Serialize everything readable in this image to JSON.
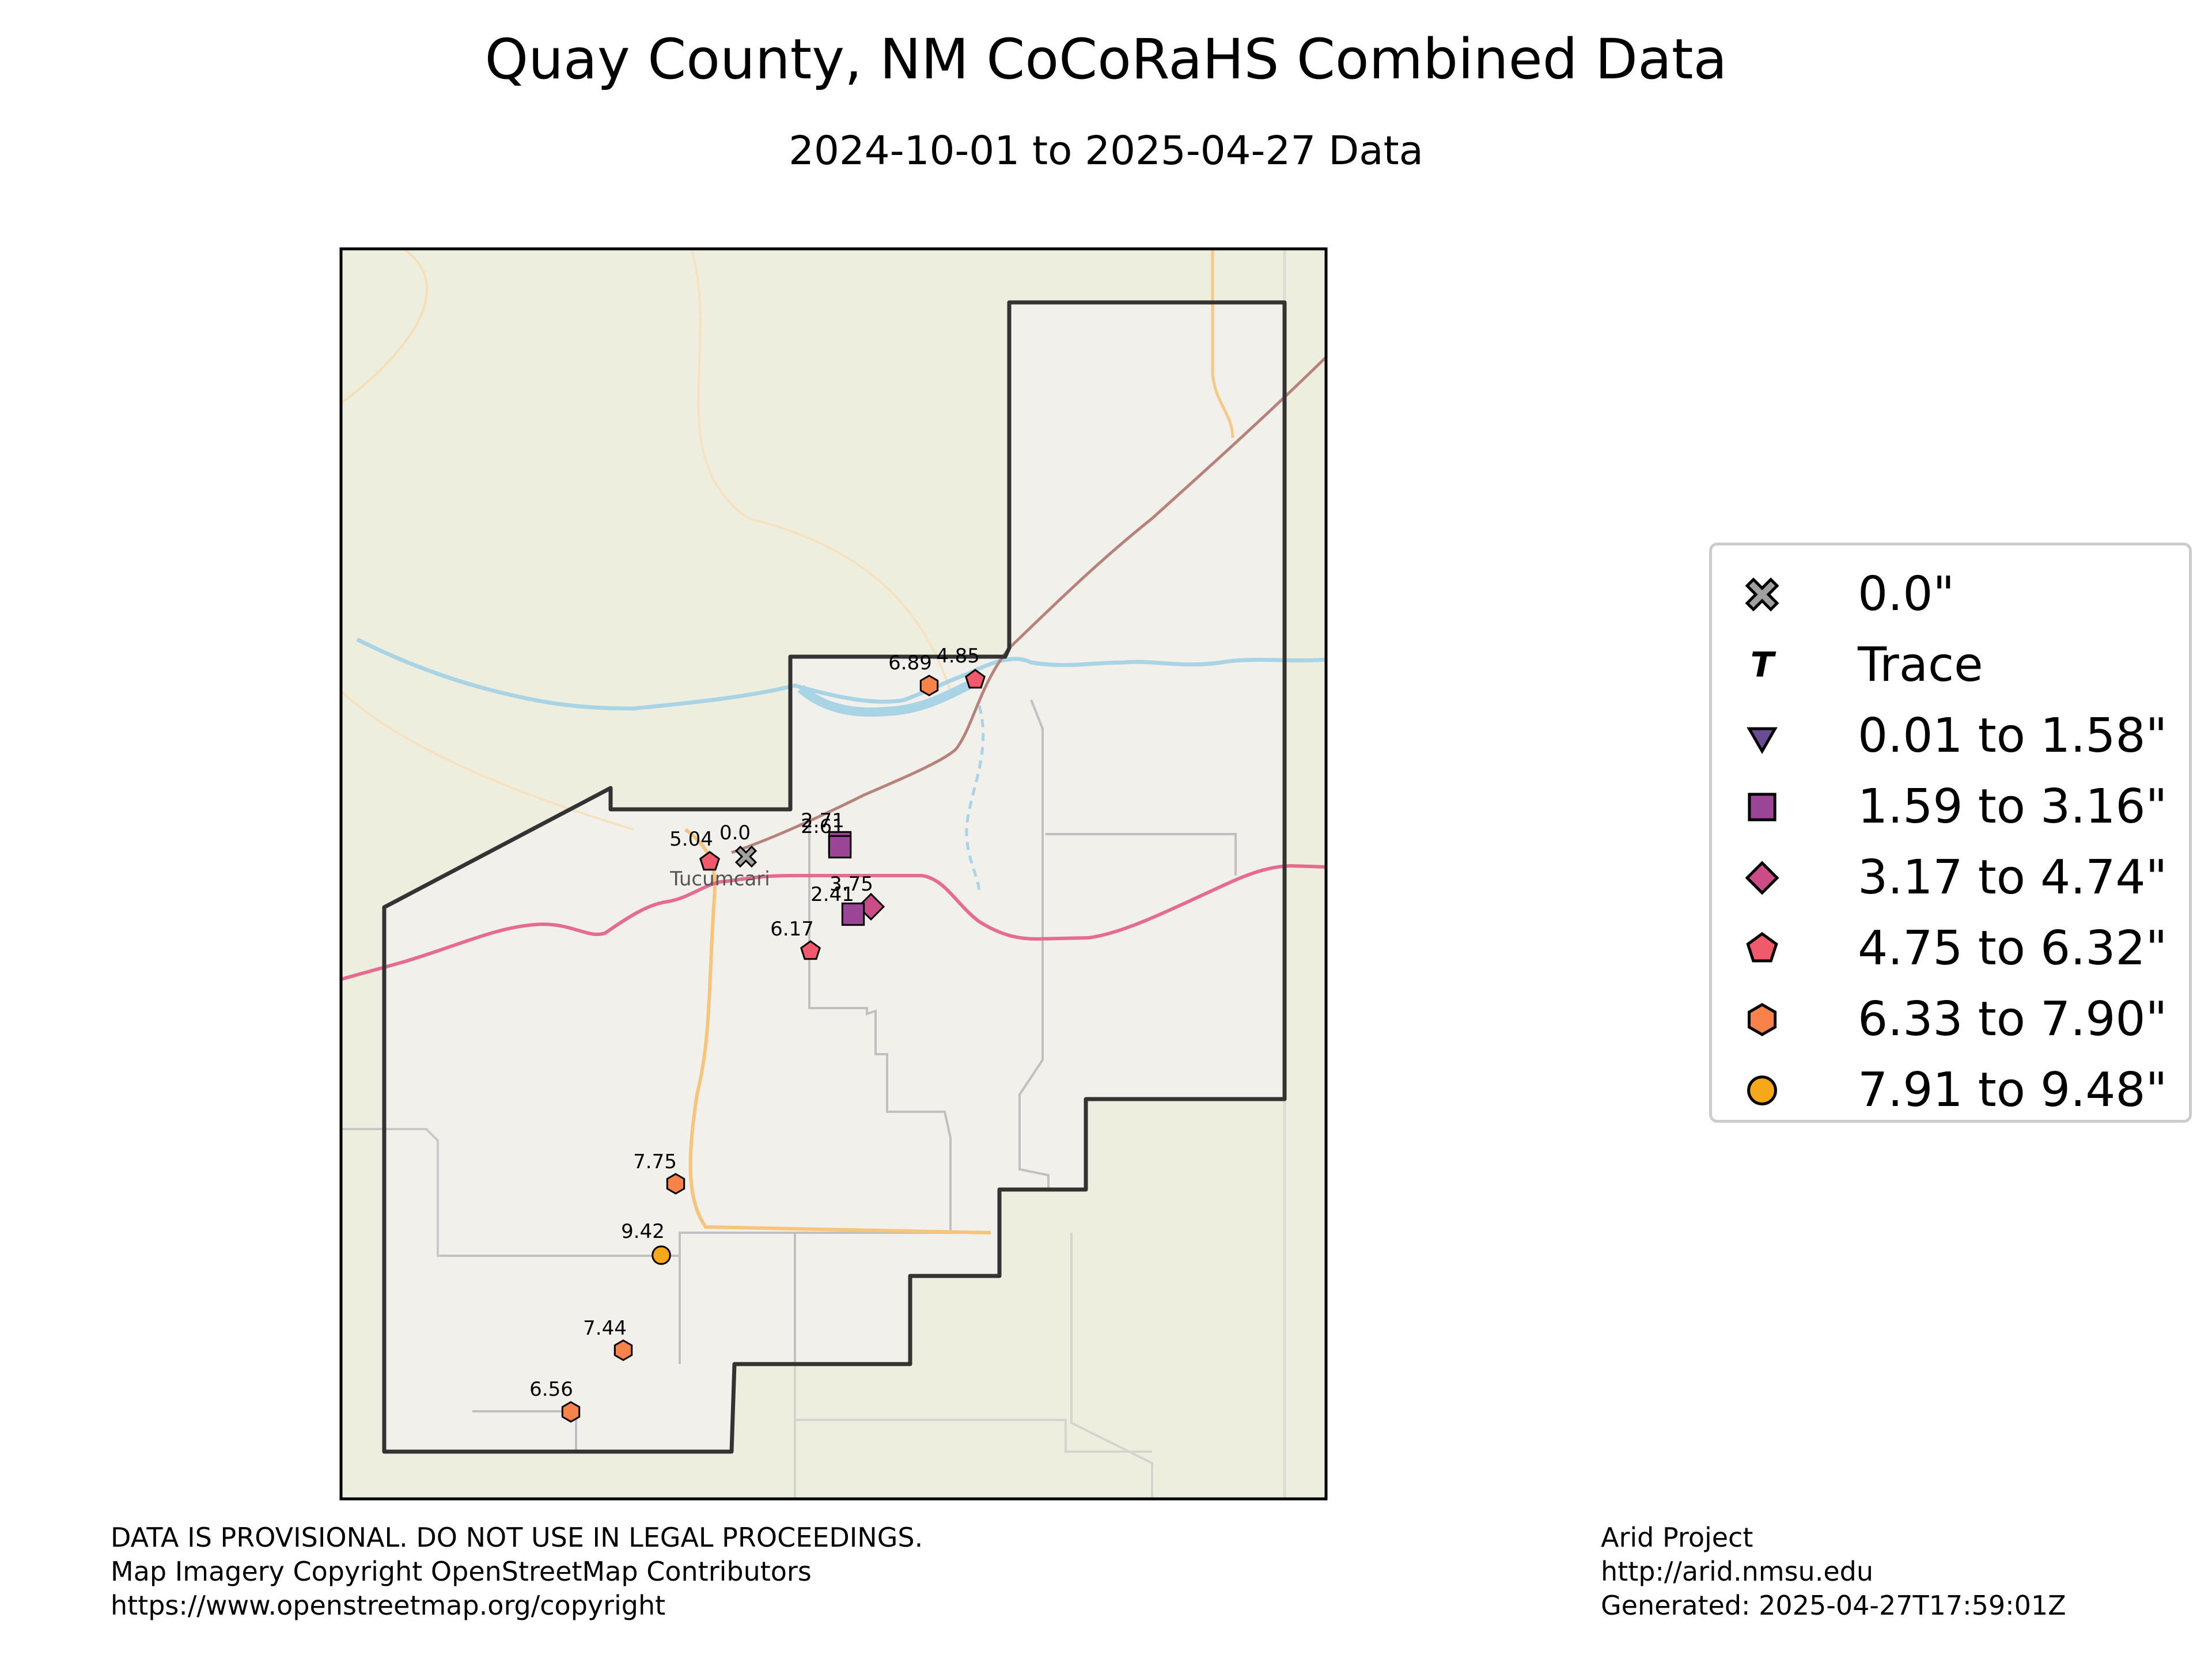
{
  "title": "Quay County, NM CoCoRaHS Combined Data",
  "subtitle": "2024-10-01 to 2025-04-27 Data",
  "map": {
    "place_labels": [
      {
        "text": "Tucumcari"
      }
    ],
    "stations": [
      {
        "value": "0.0",
        "category": 0
      },
      {
        "value": "5.04",
        "category": 5
      },
      {
        "value": "2.71",
        "category": 3
      },
      {
        "value": "2.61",
        "category": 3
      },
      {
        "value": "3.75",
        "category": 4
      },
      {
        "value": "2.41",
        "category": 3
      },
      {
        "value": "6.17",
        "category": 5
      },
      {
        "value": "6.89",
        "category": 6
      },
      {
        "value": "4.85",
        "category": 5
      },
      {
        "value": "7.75",
        "category": 6
      },
      {
        "value": "9.42",
        "category": 7
      },
      {
        "value": "7.44",
        "category": 6
      },
      {
        "value": "6.56",
        "category": 6
      }
    ]
  },
  "legend": {
    "items": [
      {
        "label": "0.0\"",
        "symbol": "x-icon",
        "color": "#a0a0a0"
      },
      {
        "label": "Trace",
        "symbol": "trace-t-icon",
        "color": "#000000"
      },
      {
        "label": "0.01 to 1.58\"",
        "symbol": "triangle-down-icon",
        "color": "#6a4c93"
      },
      {
        "label": "1.59 to 3.16\"",
        "symbol": "square-icon",
        "color": "#9a4595"
      },
      {
        "label": "3.17 to 4.74\"",
        "symbol": "diamond-icon",
        "color": "#cc4c88"
      },
      {
        "label": "4.75 to 6.32\"",
        "symbol": "pentagon-icon",
        "color": "#f15a6a"
      },
      {
        "label": "6.33 to 7.90\"",
        "symbol": "hexagon-icon",
        "color": "#f8834a"
      },
      {
        "label": "7.91 to 9.48\"",
        "symbol": "circle-icon",
        "color": "#f7a71a"
      }
    ]
  },
  "footer": {
    "left": [
      "DATA IS PROVISIONAL. DO NOT USE IN LEGAL PROCEEDINGS.",
      "Map Imagery Copyright OpenStreetMap Contributors",
      "https://www.openstreetmap.org/copyright"
    ],
    "right": [
      "Arid Project",
      "http://arid.nmsu.edu",
      "Generated: 2025-04-27T17:59:01Z"
    ]
  }
}
